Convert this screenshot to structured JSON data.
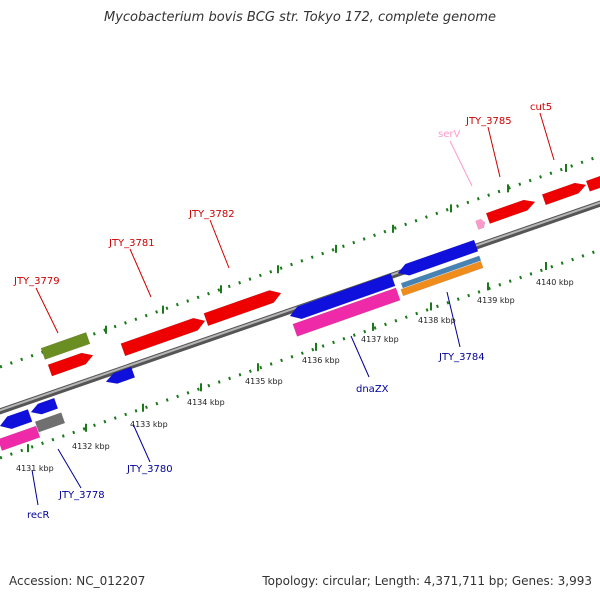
{
  "title": "Mycobacterium bovis BCG str. Tokyo 172, complete genome",
  "footer": {
    "accession": "Accession: NC_012207",
    "stats": "Topology: circular; Length: 4,371,711 bp; Genes: 3,993"
  },
  "colors": {
    "backbone": "#888888",
    "forward_label": "#cc0000",
    "reverse_label": "#000099",
    "tick": "#1a7a1a",
    "red": "#ee0000",
    "blue": "#1010dd",
    "magenta": "#ee2aa8",
    "green": "#6b8e23",
    "gray": "#707070",
    "steel": "#4682b4",
    "orange": "#f08c1c",
    "pink": "#ff99cc"
  },
  "scale_labels": [
    "4131 kbp",
    "4132 kbp",
    "4133 kbp",
    "4134 kbp",
    "4135 kbp",
    "4136 kbp",
    "4137 kbp",
    "4138 kbp",
    "4139 kbp",
    "4140 kbp"
  ],
  "forward_labels": [
    "JTY_3779",
    "JTY_3781",
    "JTY_3782",
    "serV",
    "JTY_3785",
    "cut5"
  ],
  "reverse_labels": [
    "recR",
    "JTY_3778",
    "JTY_3780",
    "dnaZX",
    "JTY_3784"
  ]
}
